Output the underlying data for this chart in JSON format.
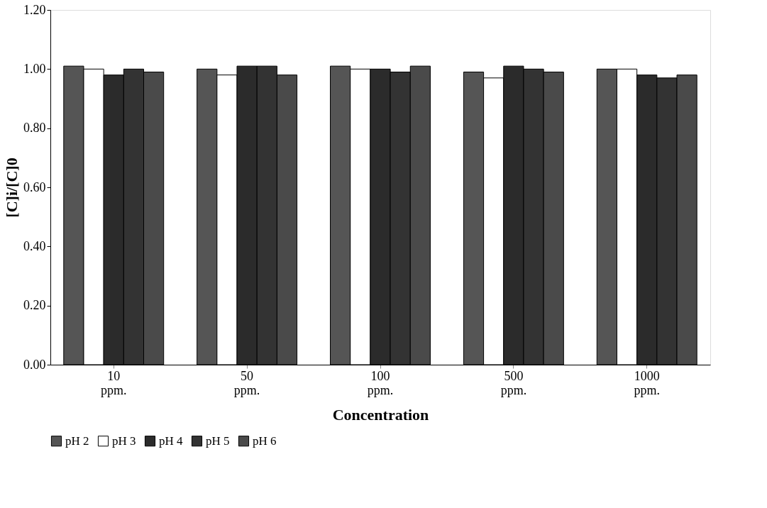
{
  "chart_data": {
    "type": "bar",
    "xlabel": "Concentration",
    "ylabel": "[C]i/[C]0",
    "categories": [
      "10 ppm.",
      "50 ppm.",
      "100 ppm.",
      "500 ppm.",
      "1000 ppm."
    ],
    "series": [
      {
        "name": "pH 2",
        "color": "#555555",
        "values": [
          1.01,
          1.0,
          1.01,
          0.99,
          1.0
        ]
      },
      {
        "name": "pH 3",
        "color": "#ffffff",
        "values": [
          1.0,
          0.98,
          1.0,
          0.97,
          1.0
        ]
      },
      {
        "name": "pH 4",
        "color": "#2b2b2b",
        "values": [
          0.98,
          1.01,
          1.0,
          1.01,
          0.98
        ]
      },
      {
        "name": "pH 5",
        "color": "#333333",
        "values": [
          1.0,
          1.01,
          0.99,
          1.0,
          0.97
        ]
      },
      {
        "name": "pH 6",
        "color": "#4a4a4a",
        "values": [
          0.99,
          0.98,
          1.01,
          0.99,
          0.98
        ]
      }
    ],
    "ylim": [
      0,
      1.2
    ],
    "yticks": [
      {
        "value": 0,
        "label": "0.00"
      },
      {
        "value": 0.2,
        "label": "0.20"
      },
      {
        "value": 0.4,
        "label": "0.40"
      },
      {
        "value": 0.6,
        "label": "0.60"
      },
      {
        "value": 0.8,
        "label": "0.80"
      },
      {
        "value": 1.0,
        "label": "1.00"
      },
      {
        "value": 1.2,
        "label": "1.20"
      }
    ],
    "grid": false,
    "legend": "bottom"
  }
}
